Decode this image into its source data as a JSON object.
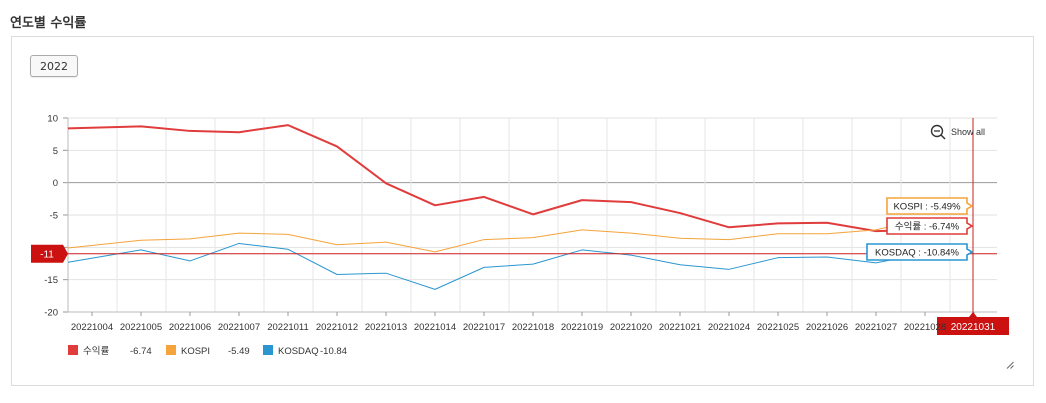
{
  "section_title": "연도별 수익률",
  "year_button": "2022",
  "show_all_label": "Show all",
  "chart_data": {
    "type": "line",
    "title": "",
    "xlabel": "",
    "ylabel": "",
    "ylim": [
      -20,
      10
    ],
    "yticks": [
      10,
      5,
      0,
      -5,
      -10,
      -15,
      -20
    ],
    "ytick_labels": [
      "10",
      "5",
      "0",
      "-5",
      "",
      "-15",
      "-20"
    ],
    "grid": true,
    "categories": [
      "20221004",
      "20221005",
      "20221006",
      "20221007",
      "20221011",
      "20221012",
      "20221013",
      "20221014",
      "20221017",
      "20221018",
      "20221019",
      "20221020",
      "20221021",
      "20221024",
      "20221025",
      "20221026",
      "20221027",
      "20221028",
      "20221031"
    ],
    "x_tick_labels": [
      "20221004",
      "20221005",
      "20221006",
      "20221007",
      "20221011",
      "20221012",
      "20221013",
      "20221014",
      "20221017",
      "20221018",
      "20221019",
      "20221020",
      "20221021",
      "20221024",
      "20221025",
      "20221026",
      "20221027",
      "20221028",
      ""
    ],
    "series": [
      {
        "name": "수익률",
        "color": "#e03c3c",
        "legend_value": "-6.74",
        "tooltip": "수익률 : -6.74%",
        "values": [
          8.4,
          8.7,
          8.0,
          7.8,
          8.9,
          5.6,
          -0.1,
          -3.5,
          -2.2,
          -4.9,
          -2.7,
          -3.0,
          -4.7,
          -6.9,
          -6.3,
          -6.2,
          -7.5,
          -7.3,
          -6.74
        ]
      },
      {
        "name": "KOSPI",
        "color": "#f5a33a",
        "legend_value": "-5.49",
        "tooltip": "KOSPI : -5.49%",
        "values": [
          -10.1,
          -8.9,
          -8.7,
          -7.8,
          -8.0,
          -9.6,
          -9.2,
          -10.7,
          -8.8,
          -8.5,
          -7.3,
          -7.8,
          -8.6,
          -8.8,
          -7.9,
          -7.9,
          -7.3,
          -5.5,
          -5.49
        ]
      },
      {
        "name": "KOSDAQ",
        "color": "#2a96d1",
        "legend_value": "-10.84",
        "tooltip": "KOSDAQ : -10.84%",
        "values": [
          -12.3,
          -10.4,
          -12.1,
          -9.4,
          -10.3,
          -14.2,
          -14.0,
          -16.5,
          -13.1,
          -12.6,
          -10.4,
          -11.2,
          -12.7,
          -13.4,
          -11.6,
          -11.5,
          -12.4,
          -10.9,
          -10.84
        ]
      }
    ],
    "cursor_y_label": "-11",
    "cursor_y_value": -11,
    "cursor_x_label": "20221031",
    "cursor_index": 18
  }
}
